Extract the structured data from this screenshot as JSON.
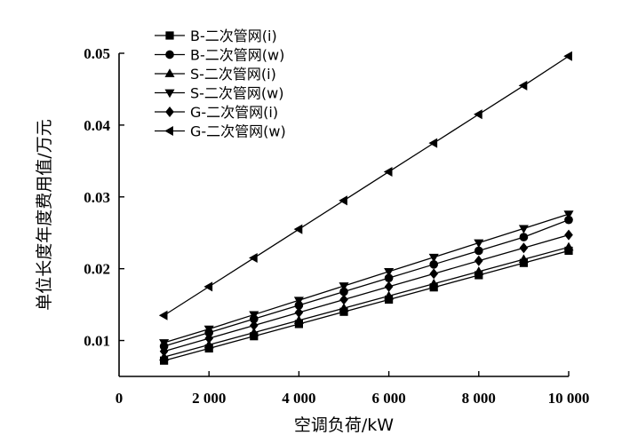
{
  "chart_data": {
    "type": "line",
    "xlabel": "空调负荷/kW",
    "ylabel": "单位长度年度费用值/万元",
    "xlim": [
      0,
      10000
    ],
    "ylim": [
      0.005,
      0.05
    ],
    "x_ticks": [
      0,
      2000,
      4000,
      6000,
      8000,
      10000
    ],
    "x_tick_labels": [
      "0",
      "2 000",
      "4 000",
      "6 000",
      "8 000",
      "10 000"
    ],
    "y_ticks": [
      0.01,
      0.02,
      0.03,
      0.04,
      0.05
    ],
    "y_tick_labels": [
      "0.01",
      "0.02",
      "0.03",
      "0.04",
      "0.05"
    ],
    "grid": false,
    "legend_position": "top-left",
    "x": [
      1000,
      2000,
      3000,
      4000,
      5000,
      6000,
      7000,
      8000,
      9000,
      10000
    ],
    "series": [
      {
        "name": "B-二次管网(i)",
        "marker": "square",
        "values": [
          0.0072,
          0.0089,
          0.0106,
          0.0123,
          0.014,
          0.0157,
          0.0174,
          0.0191,
          0.0208,
          0.0225
        ]
      },
      {
        "name": "B-二次管网(w)",
        "marker": "circle",
        "values": [
          0.0092,
          0.0111,
          0.013,
          0.0149,
          0.0168,
          0.0187,
          0.0206,
          0.0225,
          0.0244,
          0.0268
        ]
      },
      {
        "name": "S-二次管网(i)",
        "marker": "triangle-up",
        "values": [
          0.0077,
          0.0094,
          0.0111,
          0.0128,
          0.0145,
          0.0162,
          0.0179,
          0.0196,
          0.0213,
          0.023
        ]
      },
      {
        "name": "S-二次管网(w)",
        "marker": "triangle-down",
        "values": [
          0.0097,
          0.0116,
          0.0136,
          0.0156,
          0.0176,
          0.0196,
          0.0216,
          0.0236,
          0.0256,
          0.0276
        ]
      },
      {
        "name": "G-二次管网(i)",
        "marker": "diamond",
        "values": [
          0.0085,
          0.0103,
          0.0121,
          0.0139,
          0.0157,
          0.0175,
          0.0193,
          0.0211,
          0.0229,
          0.0247
        ]
      },
      {
        "name": "G-二次管网(w)",
        "marker": "triangle-left",
        "values": [
          0.0135,
          0.0175,
          0.0215,
          0.0255,
          0.0295,
          0.0335,
          0.0375,
          0.0415,
          0.0455,
          0.0496
        ]
      }
    ]
  }
}
